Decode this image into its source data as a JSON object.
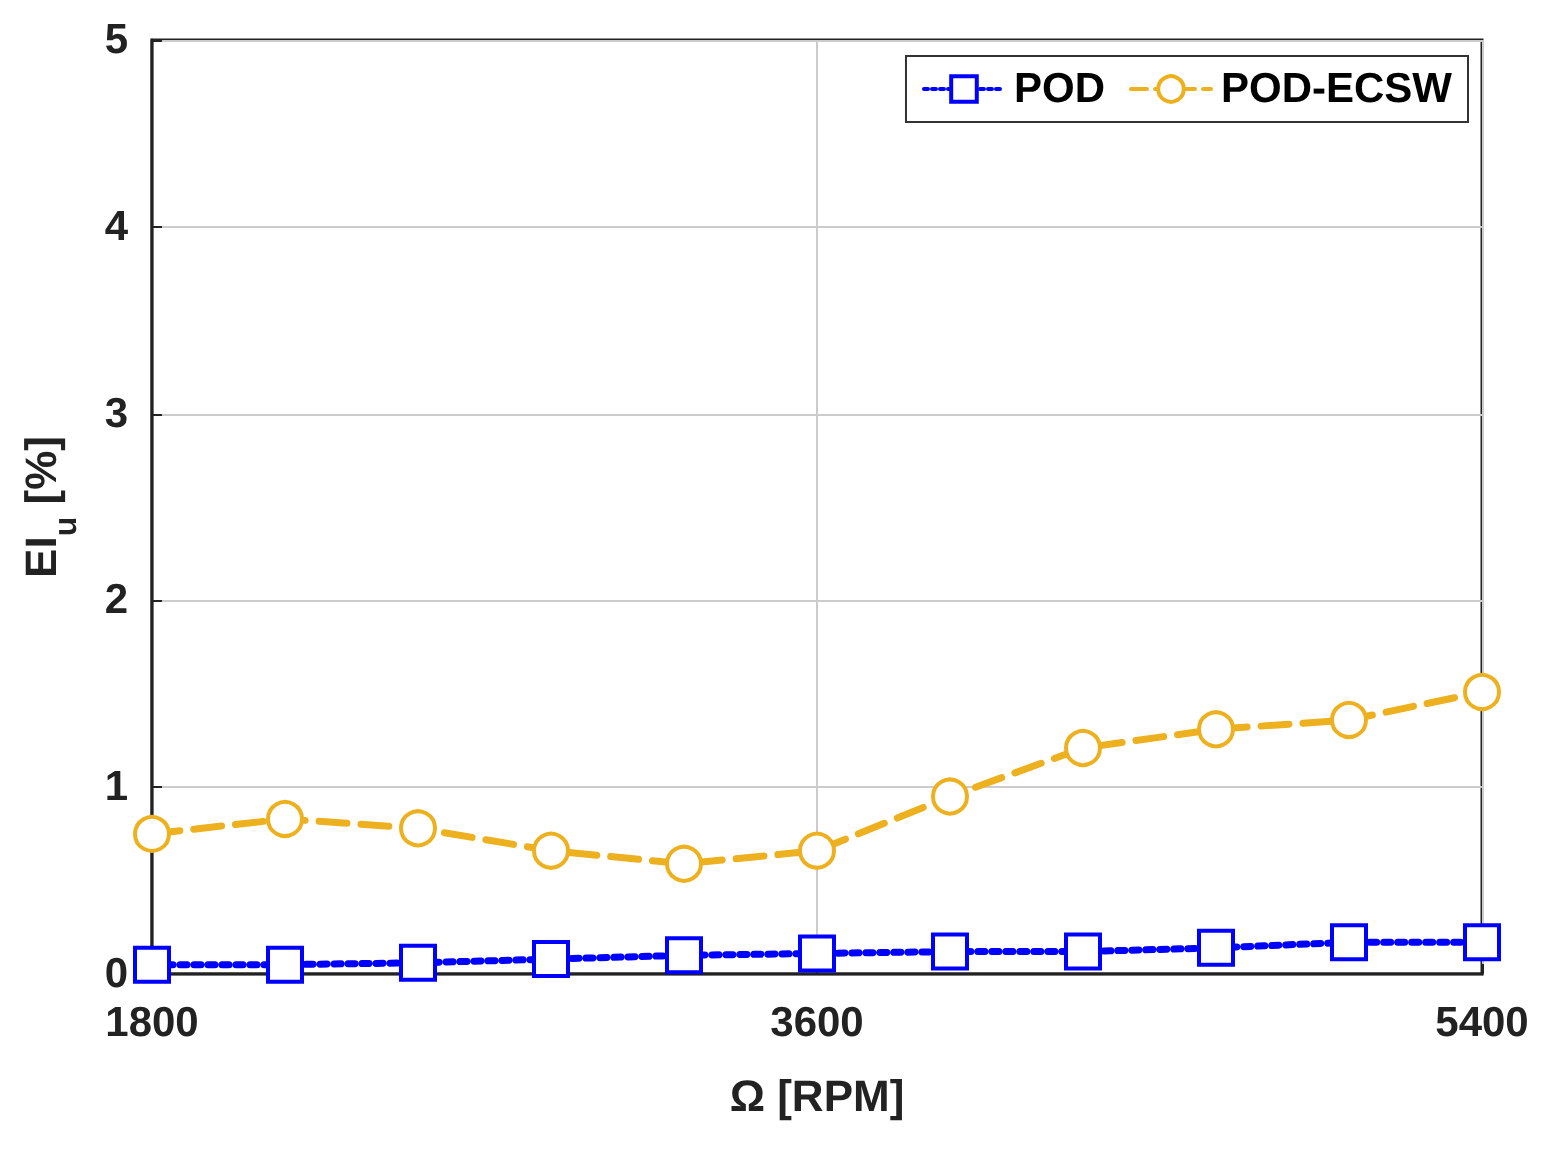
{
  "chart_data": {
    "type": "line",
    "xlabel": "Ω [RPM]",
    "ylabel": "EI$_{u}$ [%]",
    "x": [
      1800,
      2160,
      2520,
      2880,
      3240,
      3600,
      3960,
      4320,
      4680,
      5040,
      5400
    ],
    "series": [
      {
        "name": "POD",
        "color": "#0000ff",
        "marker": "square",
        "line_style": "dotted",
        "values": [
          0.05,
          0.05,
          0.06,
          0.08,
          0.1,
          0.11,
          0.12,
          0.12,
          0.14,
          0.17,
          0.17
        ]
      },
      {
        "name": "POD-ECSW",
        "color": "#edb120",
        "marker": "circle",
        "line_style": "dashed",
        "values": [
          0.75,
          0.83,
          0.78,
          0.66,
          0.59,
          0.66,
          0.95,
          1.21,
          1.31,
          1.36,
          1.51
        ]
      }
    ],
    "xlim": [
      1800,
      5400
    ],
    "xticks": [
      1800,
      3600,
      5400
    ],
    "ylim": [
      0,
      5
    ],
    "yticks": [
      0,
      1,
      2,
      3,
      4,
      5
    ],
    "grid": true,
    "legend": "top right"
  }
}
